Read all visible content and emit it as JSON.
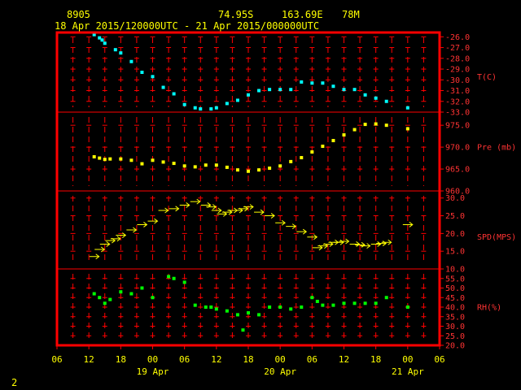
{
  "header": {
    "station": "8905",
    "lat": "74.95S",
    "lon": "163.69E",
    "elev": "78M",
    "period": "18 Apr 2015/120000UTC - 21 Apr 2015/000000UTC",
    "page_number": "2"
  },
  "colors": {
    "frame": "#ff0000",
    "temperature": "#00ffff",
    "pressure": "#ffff00",
    "wind": "#ffff00",
    "rh": "#00ff00",
    "text": "#ffff00",
    "axis_text": "#ff3333"
  },
  "chart_data": {
    "type": "scatter",
    "x_unit": "hours since 18 Apr 2015 00UTC",
    "x_ticks": [
      {
        "x": 6,
        "label": "06"
      },
      {
        "x": 12,
        "label": "12"
      },
      {
        "x": 18,
        "label": "18"
      },
      {
        "x": 24,
        "label": "00"
      },
      {
        "x": 30,
        "label": "06"
      },
      {
        "x": 36,
        "label": "12"
      },
      {
        "x": 42,
        "label": "18"
      },
      {
        "x": 48,
        "label": "00"
      },
      {
        "x": 54,
        "label": "06"
      },
      {
        "x": 60,
        "label": "12"
      },
      {
        "x": 66,
        "label": "18"
      },
      {
        "x": 72,
        "label": "00"
      },
      {
        "x": 78,
        "label": "06"
      }
    ],
    "date_labels": [
      {
        "x": 24,
        "label": "19 Apr"
      },
      {
        "x": 48,
        "label": "20 Apr"
      },
      {
        "x": 72,
        "label": "21 Apr"
      }
    ],
    "xlim": [
      6,
      78
    ],
    "panels": [
      {
        "key": "temp",
        "label": "T(C)",
        "ylim": [
          -33,
          -25.6
        ],
        "ticks": [
          "-26.0",
          "-27.0",
          "-28.0",
          "-29.0",
          "-30.0",
          "-31.0",
          "-32.0",
          "-33.0"
        ],
        "tick_values": [
          -26,
          -27,
          -28,
          -29,
          -30,
          -31,
          -32,
          -33
        ],
        "points": [
          [
            13,
            -25.8
          ],
          [
            14,
            -26.1
          ],
          [
            14.5,
            -26.3
          ],
          [
            15,
            -26.6
          ],
          [
            17,
            -27.2
          ],
          [
            18,
            -27.5
          ],
          [
            20,
            -28.3
          ],
          [
            22,
            -29.3
          ],
          [
            24,
            -29.7
          ],
          [
            26,
            -30.7
          ],
          [
            28,
            -31.3
          ],
          [
            30,
            -32.3
          ],
          [
            32,
            -32.6
          ],
          [
            33,
            -32.7
          ],
          [
            35,
            -32.7
          ],
          [
            36,
            -32.6
          ],
          [
            38,
            -32.2
          ],
          [
            40,
            -31.9
          ],
          [
            42,
            -31.4
          ],
          [
            44,
            -31.0
          ],
          [
            46,
            -30.9
          ],
          [
            48,
            -30.9
          ],
          [
            50,
            -30.9
          ],
          [
            52,
            -30.2
          ],
          [
            54,
            -30.3
          ],
          [
            56,
            -30.3
          ],
          [
            58,
            -30.6
          ],
          [
            60,
            -30.9
          ],
          [
            62,
            -30.9
          ],
          [
            64,
            -31.4
          ],
          [
            66,
            -31.7
          ],
          [
            68,
            -32.0
          ],
          [
            72,
            -32.6
          ]
        ]
      },
      {
        "key": "pres",
        "label": "Pre (mb)",
        "ylim": [
          960,
          978
        ],
        "ticks": [
          "975.0",
          "970.0",
          "965.0",
          "960.0"
        ],
        "tick_values": [
          975,
          970,
          965,
          960
        ],
        "points": [
          [
            13,
            967.8
          ],
          [
            14,
            967.5
          ],
          [
            15,
            967.2
          ],
          [
            16,
            967.3
          ],
          [
            18,
            967.3
          ],
          [
            20,
            967.0
          ],
          [
            22,
            966.2
          ],
          [
            24,
            967.0
          ],
          [
            26,
            966.6
          ],
          [
            28,
            966.3
          ],
          [
            30,
            965.7
          ],
          [
            32,
            965.5
          ],
          [
            34,
            965.9
          ],
          [
            36,
            965.9
          ],
          [
            38,
            965.4
          ],
          [
            40,
            964.8
          ],
          [
            42,
            964.5
          ],
          [
            44,
            964.8
          ],
          [
            46,
            965.2
          ],
          [
            48,
            965.7
          ],
          [
            50,
            966.7
          ],
          [
            52,
            967.6
          ],
          [
            54,
            968.9
          ],
          [
            56,
            970.2
          ],
          [
            58,
            971.5
          ],
          [
            60,
            972.8
          ],
          [
            62,
            974.0
          ],
          [
            64,
            975.2
          ],
          [
            66,
            975.3
          ],
          [
            68,
            975.0
          ],
          [
            72,
            974.2
          ]
        ]
      },
      {
        "key": "wind",
        "label": "SPD(MPS)",
        "ylim": [
          10,
          32
        ],
        "ticks": [
          "30.0",
          "25.0",
          "20.0",
          "15.0",
          "10.0"
        ],
        "tick_values": [
          30,
          25,
          20,
          15,
          10
        ],
        "points": [
          [
            13,
            13.5
          ],
          [
            14,
            15.5
          ],
          [
            15,
            17
          ],
          [
            16,
            18
          ],
          [
            17,
            18.5
          ],
          [
            18,
            19.5
          ],
          [
            20,
            21
          ],
          [
            22,
            22.5
          ],
          [
            24,
            23.5
          ],
          [
            26,
            26.5
          ],
          [
            28,
            27
          ],
          [
            30,
            28
          ],
          [
            32,
            29
          ],
          [
            34,
            28
          ],
          [
            35,
            27.5
          ],
          [
            36,
            26.5
          ],
          [
            37,
            25.5
          ],
          [
            38,
            26
          ],
          [
            39,
            26.5
          ],
          [
            40,
            26.5
          ],
          [
            41,
            27
          ],
          [
            42,
            27.5
          ],
          [
            44,
            26
          ],
          [
            46,
            25
          ],
          [
            48,
            23
          ],
          [
            50,
            22
          ],
          [
            52,
            20.5
          ],
          [
            54,
            19
          ],
          [
            55,
            16
          ],
          [
            56,
            16.5
          ],
          [
            57,
            17
          ],
          [
            58,
            17.5
          ],
          [
            59,
            17.5
          ],
          [
            60,
            17.8
          ],
          [
            62,
            17
          ],
          [
            63,
            16.8
          ],
          [
            64,
            16.5
          ],
          [
            66,
            17
          ],
          [
            67,
            17.2
          ],
          [
            68,
            17.5
          ],
          [
            72,
            22.5
          ]
        ]
      },
      {
        "key": "rh",
        "label": "RH(%)",
        "ylim": [
          20,
          60
        ],
        "ticks": [
          "55.0",
          "50.0",
          "45.0",
          "40.0",
          "35.0",
          "30.0",
          "25.0",
          "20.0"
        ],
        "tick_values": [
          55,
          50,
          45,
          40,
          35,
          30,
          25,
          20
        ],
        "points": [
          [
            13,
            47
          ],
          [
            14,
            45
          ],
          [
            15,
            42
          ],
          [
            16,
            44
          ],
          [
            18,
            48
          ],
          [
            20,
            47
          ],
          [
            22,
            50
          ],
          [
            24,
            45
          ],
          [
            27,
            56
          ],
          [
            28,
            55
          ],
          [
            30,
            53
          ],
          [
            32,
            41
          ],
          [
            34,
            40
          ],
          [
            35,
            40
          ],
          [
            36,
            39
          ],
          [
            38,
            38
          ],
          [
            40,
            36
          ],
          [
            41,
            28
          ],
          [
            42,
            37
          ],
          [
            44,
            36
          ],
          [
            46,
            40
          ],
          [
            48,
            40
          ],
          [
            50,
            39
          ],
          [
            52,
            40
          ],
          [
            54,
            45
          ],
          [
            55,
            43
          ],
          [
            56,
            41
          ],
          [
            58,
            41
          ],
          [
            60,
            42
          ],
          [
            62,
            42
          ],
          [
            64,
            42
          ],
          [
            66,
            42
          ],
          [
            68,
            45
          ],
          [
            72,
            40
          ]
        ]
      }
    ]
  }
}
